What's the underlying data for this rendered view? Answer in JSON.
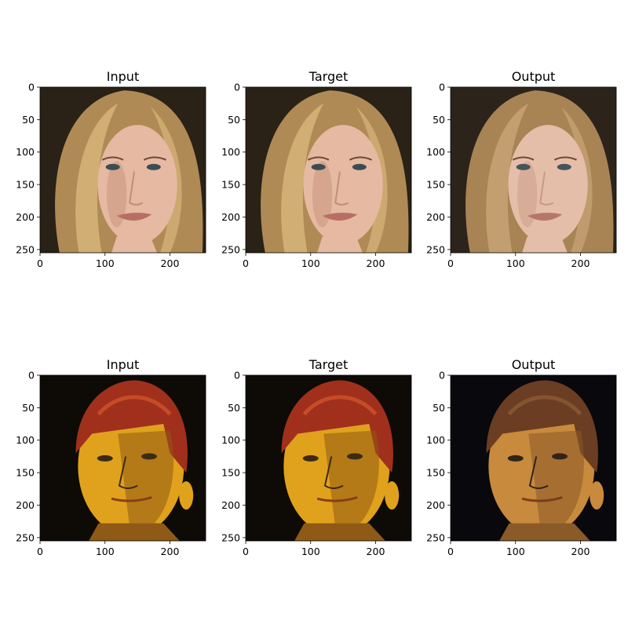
{
  "chart_data": {
    "type": "image-grid",
    "panels": [
      {
        "title": "Input",
        "subject": "blonde woman portrait",
        "palette": {
          "bg": "#2a2117",
          "hair": "#b08a55",
          "hair_light": "#d9b77c",
          "skin": "#e6b9a2",
          "shade": "#c18e76",
          "lips": "#b86e64",
          "eyes": "#3b4c55"
        },
        "xticks": [
          0,
          100,
          200
        ],
        "yticks": [
          0,
          50,
          100,
          150,
          200,
          250
        ],
        "xlim": [
          0,
          255
        ],
        "ylim": [
          255,
          0
        ]
      },
      {
        "title": "Target",
        "subject": "blonde woman portrait",
        "palette": {
          "bg": "#2a2117",
          "hair": "#b08a55",
          "hair_light": "#d9b77c",
          "skin": "#e6b9a2",
          "shade": "#c18e76",
          "lips": "#b86e64",
          "eyes": "#3b4c55"
        },
        "xticks": [
          0,
          100,
          200
        ],
        "yticks": [
          0,
          50,
          100,
          150,
          200,
          250
        ],
        "xlim": [
          0,
          255
        ],
        "ylim": [
          255,
          0
        ]
      },
      {
        "title": "Output",
        "subject": "blonde woman portrait (smoothed)",
        "palette": {
          "bg": "#2c241b",
          "hair": "#a88455",
          "hair_light": "#c9a577",
          "skin": "#e5bea9",
          "shade": "#c79a83",
          "lips": "#b7766c",
          "eyes": "#44545b"
        },
        "xticks": [
          0,
          100,
          200
        ],
        "yticks": [
          0,
          50,
          100,
          150,
          200,
          250
        ],
        "xlim": [
          0,
          255
        ],
        "ylim": [
          255,
          0
        ]
      },
      {
        "title": "Input",
        "subject": "man portrait, yellow lighting",
        "palette": {
          "bg": "#0e0a06",
          "hair": "#a0301c",
          "hair_light": "#d0532c",
          "skin": "#e0a21c",
          "shade": "#8f5a16",
          "lips": "#8b3f12",
          "eyes": "#3b2a14"
        },
        "xticks": [
          0,
          100,
          200
        ],
        "yticks": [
          0,
          50,
          100,
          150,
          200,
          250
        ],
        "xlim": [
          0,
          255
        ],
        "ylim": [
          255,
          0
        ]
      },
      {
        "title": "Target",
        "subject": "man portrait, yellow lighting",
        "palette": {
          "bg": "#0e0a06",
          "hair": "#a0301c",
          "hair_light": "#d0532c",
          "skin": "#e0a21c",
          "shade": "#8f5a16",
          "lips": "#8b3f12",
          "eyes": "#3b2a14"
        },
        "xticks": [
          0,
          100,
          200
        ],
        "yticks": [
          0,
          50,
          100,
          150,
          200,
          250
        ],
        "xlim": [
          0,
          255
        ],
        "ylim": [
          255,
          0
        ]
      },
      {
        "title": "Output",
        "subject": "man portrait (smoothed)",
        "palette": {
          "bg": "#08080d",
          "hair": "#6b3d22",
          "hair_light": "#8c5a36",
          "skin": "#c88a3c",
          "shade": "#8a5a28",
          "lips": "#7a3e1a",
          "eyes": "#2e2418"
        },
        "xticks": [
          0,
          100,
          200
        ],
        "yticks": [
          0,
          50,
          100,
          150,
          200,
          250
        ],
        "xlim": [
          0,
          255
        ],
        "ylim": [
          255,
          0
        ]
      }
    ]
  }
}
